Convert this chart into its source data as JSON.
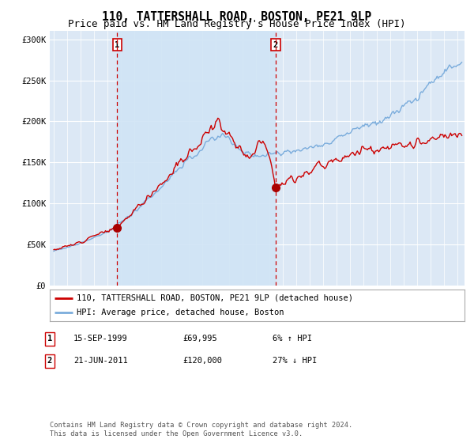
{
  "title": "110, TATTERSHALL ROAD, BOSTON, PE21 9LP",
  "subtitle": "Price paid vs. HM Land Registry's House Price Index (HPI)",
  "ylabel_ticks": [
    "£0",
    "£50K",
    "£100K",
    "£150K",
    "£200K",
    "£250K",
    "£300K"
  ],
  "ytick_values": [
    0,
    50000,
    100000,
    150000,
    200000,
    250000,
    300000
  ],
  "ylim": [
    0,
    310000
  ],
  "xlim_start": 1994.7,
  "xlim_end": 2025.5,
  "sale1": {
    "date_num": 1999.71,
    "value": 69995,
    "label": "1",
    "hpi_pct": "6% ↑ HPI",
    "date_str": "15-SEP-1999",
    "price_str": "£69,995"
  },
  "sale2": {
    "date_num": 2011.47,
    "value": 120000,
    "label": "2",
    "hpi_pct": "27% ↓ HPI",
    "date_str": "21-JUN-2011",
    "price_str": "£120,000"
  },
  "red_color": "#cc0000",
  "blue_color": "#7aacdc",
  "vline_color": "#cc0000",
  "dot_color": "#aa0000",
  "background_color": "#dce8f5",
  "shade_color": "#d0e4f5",
  "legend_label_red": "110, TATTERSHALL ROAD, BOSTON, PE21 9LP (detached house)",
  "legend_label_blue": "HPI: Average price, detached house, Boston",
  "footer": "Contains HM Land Registry data © Crown copyright and database right 2024.\nThis data is licensed under the Open Government Licence v3.0.",
  "title_fontsize": 10.5,
  "subtitle_fontsize": 9,
  "tick_fontsize": 7.5
}
